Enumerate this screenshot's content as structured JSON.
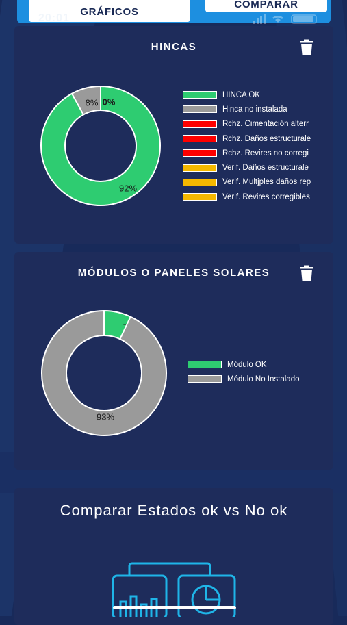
{
  "header": {
    "tab_graficos": "GRÁFICOS",
    "tab_comparar": "COMPARAR",
    "status_time": "20:01"
  },
  "colors": {
    "accent": "#1d8fe0",
    "card": "#1e2c5b",
    "ok_green": "#2ecc71",
    "not_installed_gray": "#9a9a9a",
    "reject_red": "#ff0000",
    "verify_amber": "#f5b800"
  },
  "chart_data": [
    {
      "type": "pie",
      "donut": true,
      "title": "HINCAS",
      "series": [
        {
          "name": "HINCA OK",
          "value": 92,
          "label": "92%",
          "color": "#2ecc71"
        },
        {
          "name": "Hinca no instalada",
          "value": 8,
          "label": "8%",
          "color": "#9a9a9a"
        },
        {
          "name": "Rchz. Cimentación alterr",
          "value": 0,
          "label": "0%",
          "color": "#ff0000"
        },
        {
          "name": "Rchz. Daños estructurale",
          "value": 0,
          "label": "",
          "color": "#ff0000"
        },
        {
          "name": "Rchz. Revires no corregi",
          "value": 0,
          "label": "",
          "color": "#ff0000"
        },
        {
          "name": "Verif. Daños estructurale",
          "value": 0,
          "label": "",
          "color": "#f5b800"
        },
        {
          "name": "Verif. Multjples daños rep",
          "value": 0,
          "label": "",
          "color": "#f5b800"
        },
        {
          "name": "Verif. Revires corregibles",
          "value": 0,
          "label": "",
          "color": "#f5b800"
        }
      ],
      "legend_position": "right"
    },
    {
      "type": "pie",
      "donut": true,
      "title": "MÓDULOS O PANELES SOLARES",
      "series": [
        {
          "name": "Módulo OK",
          "value": 7,
          "label": "7%",
          "color": "#2ecc71"
        },
        {
          "name": "Módulo No Instalado",
          "value": 93,
          "label": "93%",
          "color": "#9a9a9a"
        }
      ],
      "legend_position": "right"
    }
  ],
  "compare": {
    "title": "Comparar Estados ok vs No ok",
    "icon": "charts-comparison-icon"
  }
}
